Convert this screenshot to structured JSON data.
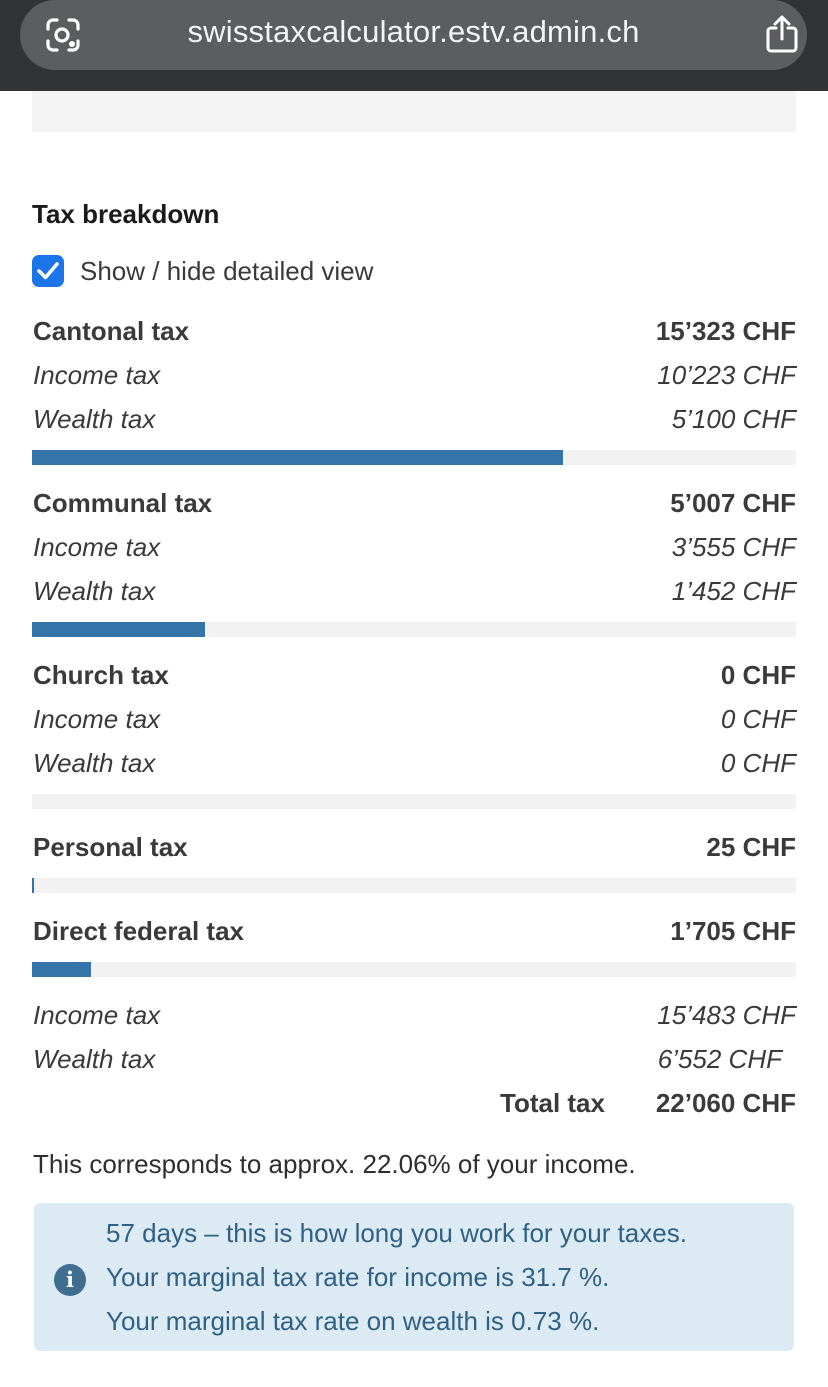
{
  "browser": {
    "url": "swisstaxcalculator.estv.admin.ch",
    "icons": {
      "left": "lens-icon",
      "right": "share-icon"
    }
  },
  "breakdown": {
    "title": "Tax breakdown",
    "toggle_label": "Show / hide detailed view",
    "toggle_checked": true,
    "sections": [
      {
        "label": "Cantonal tax",
        "value": "15’323 CHF",
        "bar_fraction": 0.695,
        "subs": [
          {
            "label": "Income tax",
            "value": "10’223 CHF"
          },
          {
            "label": "Wealth tax",
            "value": "5’100 CHF"
          }
        ]
      },
      {
        "label": "Communal tax",
        "value": "5’007 CHF",
        "bar_fraction": 0.227,
        "subs": [
          {
            "label": "Income tax",
            "value": "3’555 CHF"
          },
          {
            "label": "Wealth tax",
            "value": "1’452 CHF"
          }
        ]
      },
      {
        "label": "Church tax",
        "value": "0 CHF",
        "bar_fraction": 0,
        "subs": [
          {
            "label": "Income tax",
            "value": "0 CHF"
          },
          {
            "label": "Wealth tax",
            "value": "0 CHF"
          }
        ]
      },
      {
        "label": "Personal tax",
        "value": "25 CHF",
        "bar_fraction": 0.0013
      },
      {
        "label": "Direct federal tax",
        "value": "1’705 CHF",
        "bar_fraction": 0.077
      }
    ],
    "totals": [
      {
        "label": "Income tax",
        "value": "15’483 CHF"
      },
      {
        "label": "Wealth tax",
        "value": "6’552 CHF"
      }
    ],
    "total_label": "Total tax",
    "total_value": "22’060 CHF",
    "corresponds": "This corresponds to approx. 22.06% of your income."
  },
  "info": {
    "icon": "info-icon",
    "lines": [
      "57 days – this is how long you work for your taxes.",
      "Your marginal tax rate for income is 31.7 %.",
      "Your marginal tax rate on wealth is 0.73 %."
    ]
  }
}
